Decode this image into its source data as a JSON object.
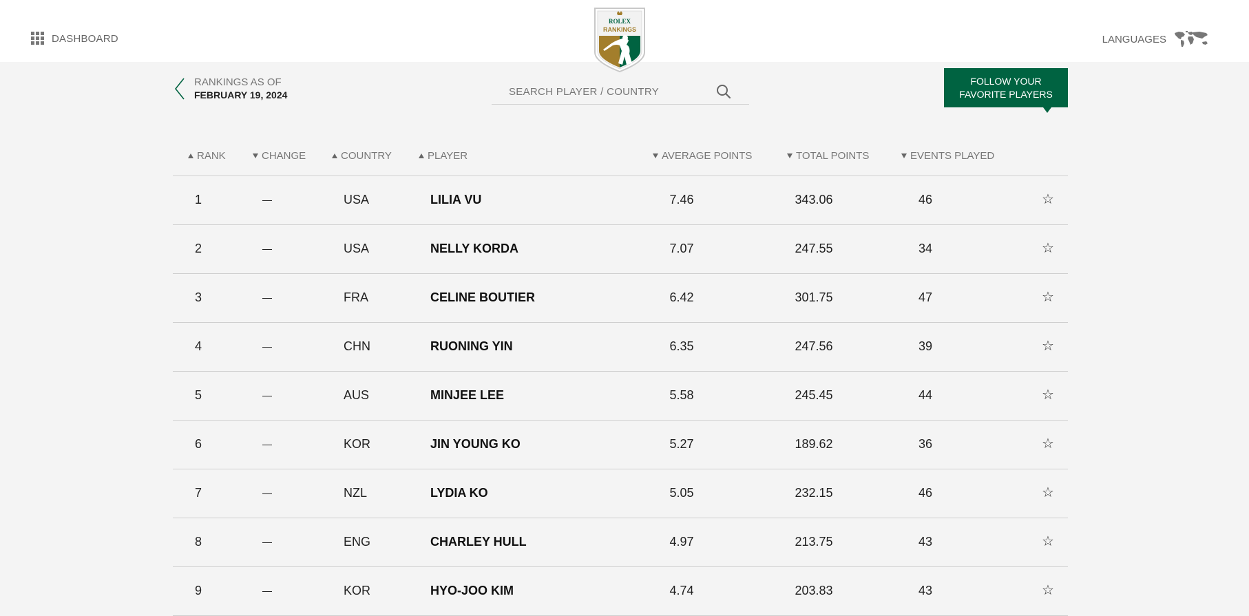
{
  "header": {
    "dashboard_label": "DASHBOARD",
    "languages_label": "LANGUAGES",
    "logo": {
      "brand": "ROLEX",
      "title": "RANKINGS",
      "colors": {
        "green": "#006341",
        "gold": "#a37e2c"
      }
    }
  },
  "rankings_as_of": {
    "label": "RANKINGS AS OF",
    "date": "FEBRUARY 19, 2024"
  },
  "search": {
    "placeholder": "SEARCH PLAYER / COUNTRY",
    "value": ""
  },
  "follow_button": {
    "line1": "FOLLOW YOUR",
    "line2": "FAVORITE PLAYERS",
    "color": "#006341"
  },
  "table": {
    "columns": {
      "rank": {
        "label": "RANK",
        "sort": "up"
      },
      "change": {
        "label": "CHANGE",
        "sort": "down"
      },
      "country": {
        "label": "COUNTRY",
        "sort": "up"
      },
      "player": {
        "label": "PLAYER",
        "sort": "up"
      },
      "average_points": {
        "label": "AVERAGE POINTS",
        "sort": "down"
      },
      "total_points": {
        "label": "TOTAL POINTS",
        "sort": "down"
      },
      "events_played": {
        "label": "EVENTS PLAYED",
        "sort": "down"
      }
    },
    "rows": [
      {
        "rank": "1",
        "change": "—",
        "country": "USA",
        "player": "LILIA VU",
        "avg": "7.46",
        "total": "343.06",
        "events": "46",
        "star": "☆"
      },
      {
        "rank": "2",
        "change": "—",
        "country": "USA",
        "player": "NELLY KORDA",
        "avg": "7.07",
        "total": "247.55",
        "events": "34",
        "star": "☆"
      },
      {
        "rank": "3",
        "change": "—",
        "country": "FRA",
        "player": "CELINE BOUTIER",
        "avg": "6.42",
        "total": "301.75",
        "events": "47",
        "star": "☆"
      },
      {
        "rank": "4",
        "change": "—",
        "country": "CHN",
        "player": "RUONING YIN",
        "avg": "6.35",
        "total": "247.56",
        "events": "39",
        "star": "☆"
      },
      {
        "rank": "5",
        "change": "—",
        "country": "AUS",
        "player": "MINJEE LEE",
        "avg": "5.58",
        "total": "245.45",
        "events": "44",
        "star": "☆"
      },
      {
        "rank": "6",
        "change": "—",
        "country": "KOR",
        "player": "JIN YOUNG KO",
        "avg": "5.27",
        "total": "189.62",
        "events": "36",
        "star": "☆"
      },
      {
        "rank": "7",
        "change": "—",
        "country": "NZL",
        "player": "LYDIA KO",
        "avg": "5.05",
        "total": "232.15",
        "events": "46",
        "star": "☆"
      },
      {
        "rank": "8",
        "change": "—",
        "country": "ENG",
        "player": "CHARLEY HULL",
        "avg": "4.97",
        "total": "213.75",
        "events": "43",
        "star": "☆"
      },
      {
        "rank": "9",
        "change": "—",
        "country": "KOR",
        "player": "HYO-JOO KIM",
        "avg": "4.74",
        "total": "203.83",
        "events": "43",
        "star": "☆"
      }
    ]
  }
}
